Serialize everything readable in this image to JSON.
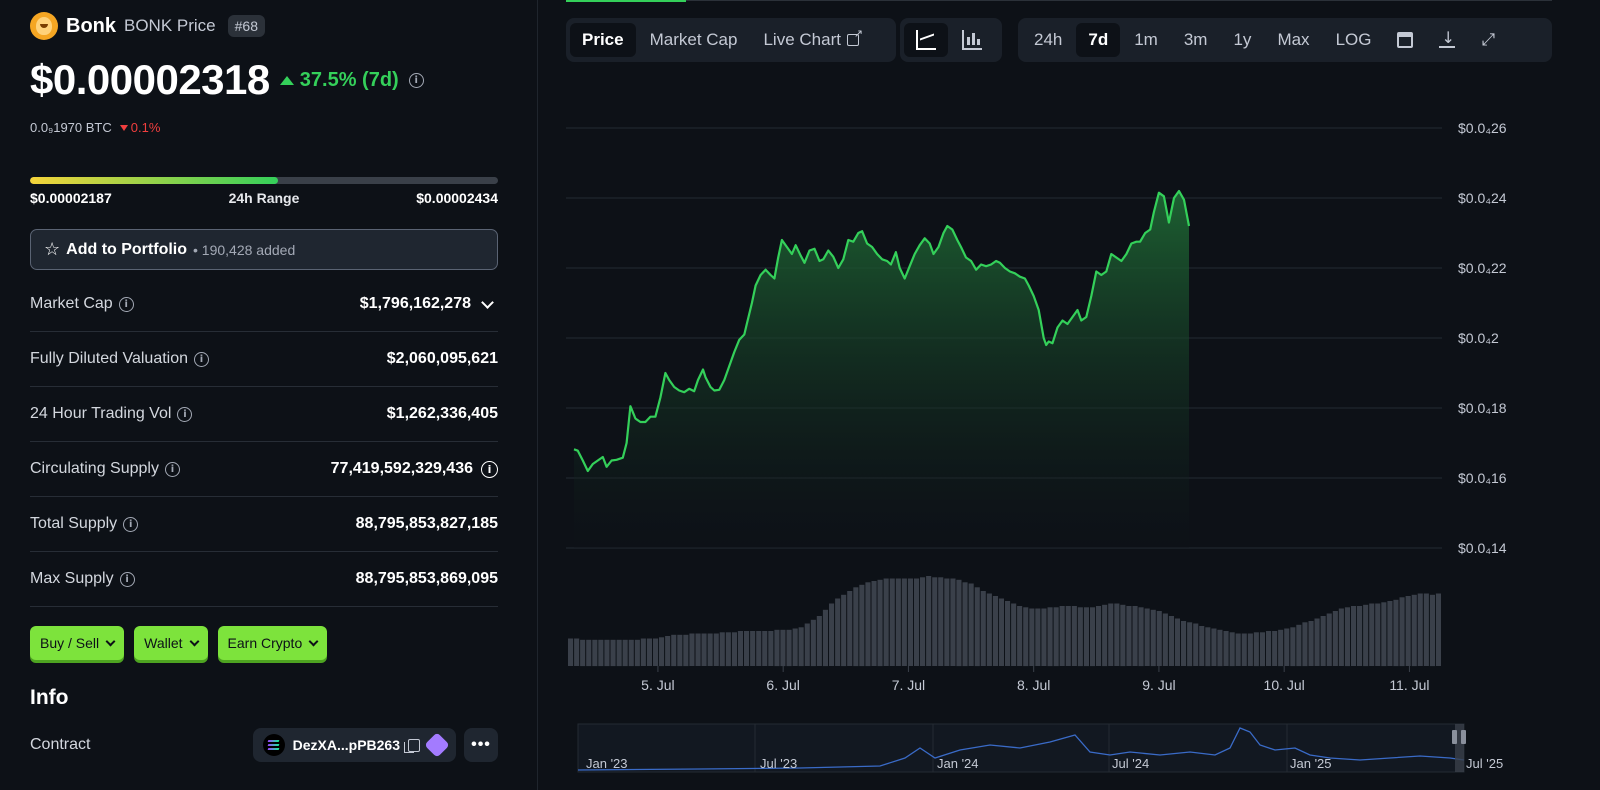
{
  "coin": {
    "name": "Bonk",
    "symbol_label": "BONK Price",
    "rank": "#68",
    "price": "$0.00002318",
    "change_7d": "37.5% (7d)",
    "btc_price": "0.0₉1970 BTC",
    "btc_change": "0.1%",
    "logo_icon": "bonk-dog-logo"
  },
  "range": {
    "low": "$0.00002187",
    "label": "24h Range",
    "high": "$0.00002434",
    "position": 0.53
  },
  "portfolio": {
    "label": "Add to Portfolio",
    "added": "190,428 added"
  },
  "stats": [
    {
      "label": "Market Cap",
      "value": "$1,796,162,278"
    },
    {
      "label": "Fully Diluted Valuation",
      "value": "$2,060,095,621"
    },
    {
      "label": "24 Hour Trading Vol",
      "value": "$1,262,336,405"
    },
    {
      "label": "Circulating Supply",
      "value": "77,419,592,329,436"
    },
    {
      "label": "Total Supply",
      "value": "88,795,853,827,185"
    },
    {
      "label": "Max Supply",
      "value": "88,795,853,869,095"
    }
  ],
  "actions": [
    "Buy / Sell",
    "Wallet",
    "Earn Crypto"
  ],
  "info": {
    "title": "Info",
    "contract_label": "Contract",
    "contract_value": "DezXA...pPB263"
  },
  "toolbar": {
    "tabs": [
      "Price",
      "Market Cap",
      "Live Chart"
    ],
    "ranges": [
      "24h",
      "7d",
      "1m",
      "3m",
      "1y",
      "Max",
      "LOG"
    ],
    "active_tab": "Price",
    "active_range": "7d"
  },
  "colors": {
    "accent_green": "#34d05a",
    "negative_red": "#f03e3e",
    "button_green": "#7de33c",
    "volume_bar": "#3a404a"
  },
  "chart_data": {
    "type": "line",
    "y_tick_labels": [
      "$0.0₄26",
      "$0.0₄24",
      "$0.0₄22",
      "$0.0₄2",
      "$0.0₄18",
      "$0.0₄16",
      "$0.0₄14"
    ],
    "y_ticks": [
      2.6e-05,
      2.4e-05,
      2.2e-05,
      2e-05,
      1.8e-05,
      1.6e-05,
      1.4e-05
    ],
    "ylim": [
      1.4e-05,
      2.6e-05
    ],
    "x_labels": [
      "5. Jul",
      "6. Jul",
      "7. Jul",
      "8. Jul",
      "9. Jul",
      "10. Jul",
      "11. Jul"
    ],
    "xlim": [
      4.33,
      11.26
    ],
    "grid": true,
    "series": [
      {
        "values": [
          [
            4.33,
            1.682e-05
          ],
          [
            4.36,
            1.678e-05
          ],
          [
            4.4,
            1.65e-05
          ],
          [
            4.44,
            1.62e-05
          ],
          [
            4.48,
            1.64e-05
          ],
          [
            4.52,
            1.65e-05
          ],
          [
            4.56,
            1.66e-05
          ],
          [
            4.59,
            1.632e-05
          ],
          [
            4.63,
            1.65e-05
          ],
          [
            4.67,
            1.652e-05
          ],
          [
            4.72,
            1.658e-05
          ],
          [
            4.75,
            1.7e-05
          ],
          [
            4.78,
            1.805e-05
          ],
          [
            4.82,
            1.77e-05
          ],
          [
            4.86,
            1.76e-05
          ],
          [
            4.9,
            1.76e-05
          ],
          [
            4.94,
            1.775e-05
          ],
          [
            4.98,
            1.775e-05
          ],
          [
            5.02,
            1.83e-05
          ],
          [
            5.06,
            1.9e-05
          ],
          [
            5.09,
            1.88e-05
          ],
          [
            5.13,
            1.86e-05
          ],
          [
            5.17,
            1.85e-05
          ],
          [
            5.21,
            1.845e-05
          ],
          [
            5.25,
            1.855e-05
          ],
          [
            5.29,
            1.848e-05
          ],
          [
            5.32,
            1.88e-05
          ],
          [
            5.36,
            1.91e-05
          ],
          [
            5.38,
            1.888e-05
          ],
          [
            5.42,
            1.86e-05
          ],
          [
            5.45,
            1.85e-05
          ],
          [
            5.49,
            1.852e-05
          ],
          [
            5.53,
            1.88e-05
          ],
          [
            5.57,
            1.92e-05
          ],
          [
            5.61,
            1.96e-05
          ],
          [
            5.65,
            1.995e-05
          ],
          [
            5.69,
            2.01e-05
          ],
          [
            5.71,
            2.04e-05
          ],
          [
            5.75,
            2.1e-05
          ],
          [
            5.78,
            2.15e-05
          ],
          [
            5.82,
            2.18e-05
          ],
          [
            5.86,
            2.195e-05
          ],
          [
            5.9,
            2.18e-05
          ],
          [
            5.93,
            2.17e-05
          ],
          [
            5.96,
            2.23e-05
          ],
          [
            5.99,
            2.28e-05
          ],
          [
            6.03,
            2.26e-05
          ],
          [
            6.07,
            2.24e-05
          ],
          [
            6.1,
            2.265e-05
          ],
          [
            6.14,
            2.235e-05
          ],
          [
            6.17,
            2.215e-05
          ],
          [
            6.21,
            2.25e-05
          ],
          [
            6.25,
            2.255e-05
          ],
          [
            6.29,
            2.22e-05
          ],
          [
            6.32,
            2.225e-05
          ],
          [
            6.36,
            2.25e-05
          ],
          [
            6.4,
            2.232e-05
          ],
          [
            6.44,
            2.2e-05
          ],
          [
            6.48,
            2.225e-05
          ],
          [
            6.52,
            2.28e-05
          ],
          [
            6.56,
            2.275e-05
          ],
          [
            6.6,
            2.3e-05
          ],
          [
            6.63,
            2.305e-05
          ],
          [
            6.67,
            2.27e-05
          ],
          [
            6.71,
            2.26e-05
          ],
          [
            6.75,
            2.24e-05
          ],
          [
            6.79,
            2.225e-05
          ],
          [
            6.83,
            2.22e-05
          ],
          [
            6.86,
            2.21e-05
          ],
          [
            6.9,
            2.245e-05
          ],
          [
            6.93,
            2.2e-05
          ],
          [
            6.97,
            2.17e-05
          ],
          [
            7.01,
            2.205e-05
          ],
          [
            7.05,
            2.24e-05
          ],
          [
            7.09,
            2.265e-05
          ],
          [
            7.13,
            2.285e-05
          ],
          [
            7.17,
            2.27e-05
          ],
          [
            7.2,
            2.24e-05
          ],
          [
            7.24,
            2.26e-05
          ],
          [
            7.28,
            2.3e-05
          ],
          [
            7.31,
            2.32e-05
          ],
          [
            7.35,
            2.31e-05
          ],
          [
            7.39,
            2.28e-05
          ],
          [
            7.42,
            2.26e-05
          ],
          [
            7.46,
            2.23e-05
          ],
          [
            7.5,
            2.22e-05
          ],
          [
            7.54,
            2.195e-05
          ],
          [
            7.58,
            2.21e-05
          ],
          [
            7.62,
            2.205e-05
          ],
          [
            7.66,
            2.21e-05
          ],
          [
            7.7,
            2.22e-05
          ],
          [
            7.73,
            2.215e-05
          ],
          [
            7.77,
            2.2e-05
          ],
          [
            7.81,
            2.19e-05
          ],
          [
            7.85,
            2.185e-05
          ],
          [
            7.89,
            2.175e-05
          ],
          [
            7.93,
            2.17e-05
          ],
          [
            7.96,
            2.15e-05
          ],
          [
            8.0,
            2.12e-05
          ],
          [
            8.04,
            2.08e-05
          ],
          [
            8.08,
            2e-05
          ],
          [
            8.1,
            1.98e-05
          ],
          [
            8.12,
            1.99e-05
          ],
          [
            8.15,
            1.985e-05
          ],
          [
            8.19,
            2.03e-05
          ],
          [
            8.23,
            2.05e-05
          ],
          [
            8.27,
            2.04e-05
          ],
          [
            8.31,
            2.06e-05
          ],
          [
            8.35,
            2.08e-05
          ],
          [
            8.38,
            2.05e-05
          ],
          [
            8.42,
            2.06e-05
          ],
          [
            8.46,
            2.12e-05
          ],
          [
            8.5,
            2.19e-05
          ],
          [
            8.54,
            2.18e-05
          ],
          [
            8.58,
            2.19e-05
          ],
          [
            8.62,
            2.24e-05
          ],
          [
            8.66,
            2.23e-05
          ],
          [
            8.7,
            2.22e-05
          ],
          [
            8.74,
            2.24e-05
          ],
          [
            8.78,
            2.27e-05
          ],
          [
            8.82,
            2.275e-05
          ],
          [
            8.85,
            2.275e-05
          ],
          [
            8.89,
            2.3e-05
          ],
          [
            8.93,
            2.31e-05
          ],
          [
            8.96,
            2.36e-05
          ],
          [
            9.0,
            2.415e-05
          ],
          [
            9.04,
            2.405e-05
          ],
          [
            9.08,
            2.33e-05
          ],
          [
            9.12,
            2.4e-05
          ],
          [
            9.16,
            2.42e-05
          ],
          [
            9.2,
            2.395e-05
          ],
          [
            9.24,
            2.32e-05
          ]
        ]
      }
    ],
    "volume": [
      0.22,
      0.22,
      0.21,
      0.21,
      0.21,
      0.21,
      0.21,
      0.21,
      0.21,
      0.21,
      0.21,
      0.21,
      0.22,
      0.22,
      0.22,
      0.23,
      0.24,
      0.25,
      0.25,
      0.25,
      0.26,
      0.26,
      0.26,
      0.26,
      0.26,
      0.27,
      0.27,
      0.27,
      0.28,
      0.28,
      0.28,
      0.28,
      0.28,
      0.28,
      0.29,
      0.29,
      0.29,
      0.3,
      0.31,
      0.34,
      0.37,
      0.4,
      0.45,
      0.5,
      0.54,
      0.57,
      0.6,
      0.63,
      0.65,
      0.67,
      0.68,
      0.69,
      0.7,
      0.7,
      0.7,
      0.7,
      0.7,
      0.7,
      0.71,
      0.72,
      0.71,
      0.71,
      0.7,
      0.7,
      0.69,
      0.67,
      0.66,
      0.63,
      0.6,
      0.58,
      0.56,
      0.54,
      0.52,
      0.5,
      0.48,
      0.47,
      0.46,
      0.46,
      0.46,
      0.47,
      0.47,
      0.48,
      0.48,
      0.48,
      0.47,
      0.47,
      0.47,
      0.48,
      0.49,
      0.5,
      0.5,
      0.49,
      0.48,
      0.48,
      0.47,
      0.46,
      0.45,
      0.44,
      0.42,
      0.4,
      0.38,
      0.36,
      0.35,
      0.34,
      0.32,
      0.31,
      0.3,
      0.29,
      0.28,
      0.27,
      0.26,
      0.26,
      0.26,
      0.27,
      0.27,
      0.28,
      0.28,
      0.29,
      0.3,
      0.31,
      0.33,
      0.35,
      0.36,
      0.38,
      0.4,
      0.42,
      0.44,
      0.46,
      0.47,
      0.48,
      0.48,
      0.49,
      0.5,
      0.5,
      0.51,
      0.52,
      0.53,
      0.55,
      0.56,
      0.57,
      0.58,
      0.58,
      0.57,
      0.58
    ],
    "navigator_labels": [
      "Jan '23",
      "Jul '23",
      "Jan '24",
      "Jul '24",
      "Jan '25",
      "Jul '25"
    ]
  }
}
